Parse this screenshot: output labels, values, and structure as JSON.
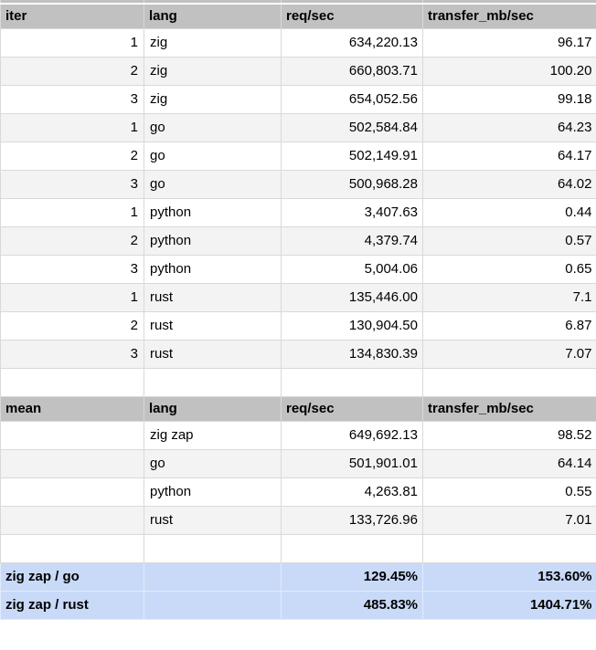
{
  "colors": {
    "header_bg": "#c1c1c1",
    "band_bg": "#f3f3f3",
    "row_bg": "#ffffff",
    "highlight_bg": "#c9daf8",
    "gridline": "#d9d9d9",
    "text": "#000000"
  },
  "iterations_table": {
    "headers": [
      "iter",
      "lang",
      "req/sec",
      "transfer_mb/sec"
    ],
    "rows": [
      [
        "1",
        "zig",
        "634,220.13",
        "96.17"
      ],
      [
        "2",
        "zig",
        "660,803.71",
        "100.20"
      ],
      [
        "3",
        "zig",
        "654,052.56",
        "99.18"
      ],
      [
        "1",
        "go",
        "502,584.84",
        "64.23"
      ],
      [
        "2",
        "go",
        "502,149.91",
        "64.17"
      ],
      [
        "3",
        "go",
        "500,968.28",
        "64.02"
      ],
      [
        "1",
        "python",
        "3,407.63",
        "0.44"
      ],
      [
        "2",
        "python",
        "4,379.74",
        "0.57"
      ],
      [
        "3",
        "python",
        "5,004.06",
        "0.65"
      ],
      [
        "1",
        "rust",
        "135,446.00",
        "7.1"
      ],
      [
        "2",
        "rust",
        "130,904.50",
        "6.87"
      ],
      [
        "3",
        "rust",
        "134,830.39",
        "7.07"
      ]
    ]
  },
  "means_table": {
    "headers": [
      "mean",
      "lang",
      "req/sec",
      "transfer_mb/sec"
    ],
    "rows": [
      [
        "",
        "zig zap",
        "649,692.13",
        "98.52"
      ],
      [
        "",
        "go",
        "501,901.01",
        "64.14"
      ],
      [
        "",
        "python",
        "4,263.81",
        "0.55"
      ],
      [
        "",
        "rust",
        "133,726.96",
        "7.01"
      ]
    ]
  },
  "comparison_table": {
    "rows": [
      [
        "zig zap / go",
        "",
        "129.45%",
        "153.60%"
      ],
      [
        "zig zap / rust",
        "",
        "485.83%",
        "1404.71%"
      ]
    ]
  }
}
